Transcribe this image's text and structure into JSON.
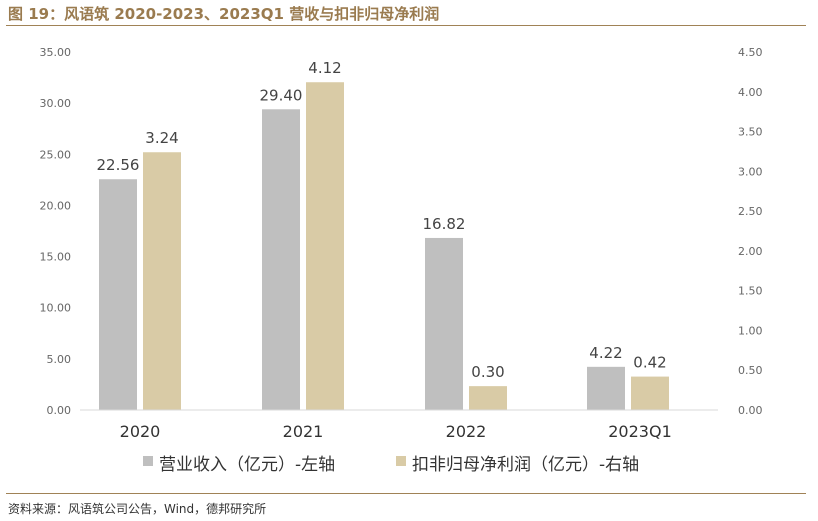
{
  "figure": {
    "title": "图 19：风语筑 2020-2023、2023Q1 营收与扣非归母净利润",
    "source": "资料来源：风语筑公司公告，Wind，德邦研究所"
  },
  "chart_data": {
    "type": "bar",
    "categories": [
      "2020",
      "2021",
      "2022",
      "2023Q1"
    ],
    "series": [
      {
        "name": "营业收入（亿元）-左轴",
        "axis": "left",
        "color": "#bfbfbf",
        "values": [
          22.56,
          29.4,
          16.82,
          4.22
        ],
        "labels": [
          "22.56",
          "29.40",
          "16.82",
          "4.22"
        ]
      },
      {
        "name": "扣非归母净利润（亿元）-右轴",
        "axis": "right",
        "color": "#d9cba6",
        "values": [
          3.24,
          4.12,
          0.3,
          0.42
        ],
        "labels": [
          "3.24",
          "4.12",
          "0.30",
          "0.42"
        ]
      }
    ],
    "y_left": {
      "ylim": [
        0,
        35
      ],
      "ticks": [
        "0.00",
        "5.00",
        "10.00",
        "15.00",
        "20.00",
        "25.00",
        "30.00",
        "35.00"
      ]
    },
    "y_right": {
      "ylim": [
        0,
        4.5
      ],
      "ticks": [
        "0.00",
        "0.50",
        "1.00",
        "1.50",
        "2.00",
        "2.50",
        "3.00",
        "3.50",
        "4.00",
        "4.50"
      ]
    },
    "grid": false,
    "legend_position": "bottom"
  }
}
